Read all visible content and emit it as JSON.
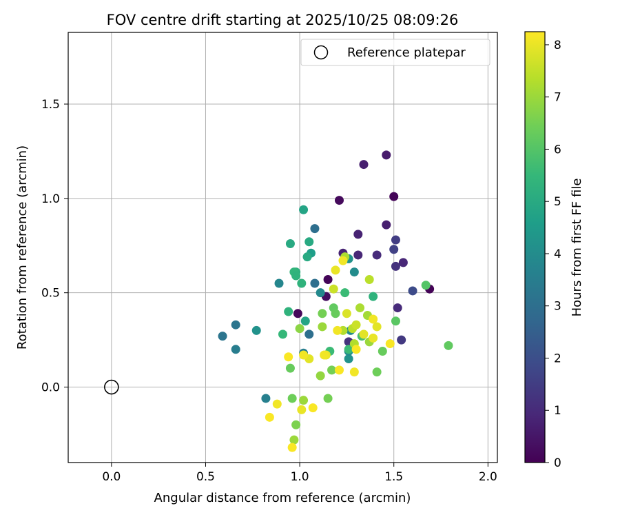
{
  "chart_data": {
    "type": "scatter",
    "title": "FOV centre drift starting at 2025/10/25 08:09:26",
    "xlabel": "Angular distance from reference (arcmin)",
    "ylabel": "Rotation from reference (arcmin)",
    "xlim": [
      -0.23,
      2.05
    ],
    "ylim": [
      -0.4,
      1.88
    ],
    "xticks": [
      0.0,
      0.5,
      1.0,
      1.5,
      2.0
    ],
    "xtick_labels": [
      "0.0",
      "0.5",
      "1.0",
      "1.5",
      "2.0"
    ],
    "yticks": [
      0.0,
      0.5,
      1.0,
      1.5
    ],
    "ytick_labels": [
      "0.0",
      "0.5",
      "1.0",
      "1.5"
    ],
    "grid": true,
    "legend": {
      "position": "top-right",
      "entries": [
        "Reference platepar"
      ]
    },
    "reference_point": {
      "x": 0.0,
      "y": 0.0,
      "label": "Reference platepar"
    },
    "colorbar": {
      "label": "Hours from first FF file",
      "range": [
        0,
        8.25
      ],
      "ticks": [
        0,
        1,
        2,
        3,
        4,
        5,
        6,
        7,
        8
      ],
      "tick_labels": [
        "0",
        "1",
        "2",
        "3",
        "4",
        "5",
        "6",
        "7",
        "8"
      ],
      "colormap": [
        "#440154",
        "#482878",
        "#3e4989",
        "#31688e",
        "#26828e",
        "#1f9e89",
        "#35b779",
        "#6ece58",
        "#b5de2b",
        "#fde725"
      ]
    },
    "points": [
      {
        "x": 1.69,
        "y": 0.52,
        "h": 0.05
      },
      {
        "x": 1.5,
        "y": 1.01,
        "h": 0.1
      },
      {
        "x": 1.21,
        "y": 0.99,
        "h": 0.2
      },
      {
        "x": 0.99,
        "y": 0.39,
        "h": 0.15
      },
      {
        "x": 1.15,
        "y": 0.57,
        "h": 0.1
      },
      {
        "x": 1.14,
        "y": 0.48,
        "h": 0.3
      },
      {
        "x": 1.46,
        "y": 1.23,
        "h": 0.6
      },
      {
        "x": 1.34,
        "y": 1.18,
        "h": 0.7
      },
      {
        "x": 1.46,
        "y": 0.86,
        "h": 0.7
      },
      {
        "x": 1.31,
        "y": 0.81,
        "h": 0.8
      },
      {
        "x": 1.23,
        "y": 0.71,
        "h": 0.8
      },
      {
        "x": 1.31,
        "y": 0.7,
        "h": 0.9
      },
      {
        "x": 1.55,
        "y": 0.66,
        "h": 0.9
      },
      {
        "x": 1.41,
        "y": 0.7,
        "h": 1.0
      },
      {
        "x": 1.52,
        "y": 0.42,
        "h": 1.0
      },
      {
        "x": 1.51,
        "y": 0.64,
        "h": 1.2
      },
      {
        "x": 1.51,
        "y": 0.78,
        "h": 1.5
      },
      {
        "x": 1.5,
        "y": 0.73,
        "h": 1.6
      },
      {
        "x": 1.54,
        "y": 0.25,
        "h": 1.4
      },
      {
        "x": 1.26,
        "y": 0.24,
        "h": 1.2
      },
      {
        "x": 1.6,
        "y": 0.51,
        "h": 1.9
      },
      {
        "x": 1.08,
        "y": 0.84,
        "h": 3.0
      },
      {
        "x": 1.08,
        "y": 0.55,
        "h": 3.0
      },
      {
        "x": 1.05,
        "y": 0.28,
        "h": 3.0
      },
      {
        "x": 0.59,
        "y": 0.27,
        "h": 3.2
      },
      {
        "x": 0.66,
        "y": 0.33,
        "h": 3.2
      },
      {
        "x": 0.66,
        "y": 0.2,
        "h": 3.5
      },
      {
        "x": 0.82,
        "y": -0.06,
        "h": 3.6
      },
      {
        "x": 0.89,
        "y": 0.55,
        "h": 3.8
      },
      {
        "x": 0.77,
        "y": 0.3,
        "h": 4.2
      },
      {
        "x": 1.02,
        "y": 0.18,
        "h": 3.5
      },
      {
        "x": 1.11,
        "y": 0.5,
        "h": 3.9
      },
      {
        "x": 1.29,
        "y": 0.61,
        "h": 4.0
      },
      {
        "x": 1.26,
        "y": 0.68,
        "h": 4.2
      },
      {
        "x": 1.27,
        "y": 0.3,
        "h": 4.0
      },
      {
        "x": 1.26,
        "y": 0.15,
        "h": 4.2
      },
      {
        "x": 1.26,
        "y": 0.19,
        "h": 4.0
      },
      {
        "x": 1.02,
        "y": 0.94,
        "h": 4.8
      },
      {
        "x": 1.06,
        "y": 0.71,
        "h": 4.6
      },
      {
        "x": 1.05,
        "y": 0.77,
        "h": 5.0
      },
      {
        "x": 1.04,
        "y": 0.69,
        "h": 5.0
      },
      {
        "x": 1.03,
        "y": 0.35,
        "h": 4.8
      },
      {
        "x": 0.95,
        "y": 0.76,
        "h": 5.0
      },
      {
        "x": 0.98,
        "y": 0.61,
        "h": 5.2
      },
      {
        "x": 0.97,
        "y": 0.61,
        "h": 5.4
      },
      {
        "x": 0.98,
        "y": 0.59,
        "h": 5.3
      },
      {
        "x": 1.01,
        "y": 0.55,
        "h": 5.3
      },
      {
        "x": 0.94,
        "y": 0.4,
        "h": 5.3
      },
      {
        "x": 0.91,
        "y": 0.28,
        "h": 5.5
      },
      {
        "x": 1.39,
        "y": 0.48,
        "h": 5.3
      },
      {
        "x": 1.24,
        "y": 0.5,
        "h": 5.6
      },
      {
        "x": 1.33,
        "y": 0.27,
        "h": 5.8
      },
      {
        "x": 1.26,
        "y": 0.2,
        "h": 5.6
      },
      {
        "x": 1.16,
        "y": 0.19,
        "h": 5.6
      },
      {
        "x": 1.67,
        "y": 0.54,
        "h": 6.0
      },
      {
        "x": 1.79,
        "y": 0.22,
        "h": 6.2
      },
      {
        "x": 1.51,
        "y": 0.35,
        "h": 6.1
      },
      {
        "x": 1.44,
        "y": 0.19,
        "h": 6.3
      },
      {
        "x": 1.41,
        "y": 0.08,
        "h": 6.4
      },
      {
        "x": 1.18,
        "y": 0.42,
        "h": 6.2
      },
      {
        "x": 1.19,
        "y": 0.39,
        "h": 6.3
      },
      {
        "x": 1.12,
        "y": 0.39,
        "h": 6.5
      },
      {
        "x": 1.17,
        "y": 0.09,
        "h": 6.5
      },
      {
        "x": 0.95,
        "y": 0.1,
        "h": 6.3
      },
      {
        "x": 0.96,
        "y": -0.06,
        "h": 6.4
      },
      {
        "x": 1.15,
        "y": -0.06,
        "h": 6.5
      },
      {
        "x": 0.98,
        "y": -0.2,
        "h": 6.6
      },
      {
        "x": 0.97,
        "y": -0.28,
        "h": 7.0
      },
      {
        "x": 1.0,
        "y": 0.31,
        "h": 6.8
      },
      {
        "x": 1.11,
        "y": 0.06,
        "h": 6.9
      },
      {
        "x": 1.12,
        "y": 0.32,
        "h": 7.0
      },
      {
        "x": 1.02,
        "y": -0.07,
        "h": 7.0
      },
      {
        "x": 1.24,
        "y": 0.69,
        "h": 7.2
      },
      {
        "x": 1.23,
        "y": 0.3,
        "h": 7.3
      },
      {
        "x": 1.28,
        "y": 0.31,
        "h": 7.4
      },
      {
        "x": 1.29,
        "y": 0.23,
        "h": 7.3
      },
      {
        "x": 1.32,
        "y": 0.42,
        "h": 7.2
      },
      {
        "x": 1.36,
        "y": 0.38,
        "h": 7.1
      },
      {
        "x": 1.37,
        "y": 0.24,
        "h": 7.0
      },
      {
        "x": 1.37,
        "y": 0.57,
        "h": 7.4
      },
      {
        "x": 1.18,
        "y": 0.52,
        "h": 7.6
      },
      {
        "x": 1.25,
        "y": 0.39,
        "h": 7.8
      },
      {
        "x": 1.3,
        "y": 0.33,
        "h": 7.6
      },
      {
        "x": 1.34,
        "y": 0.28,
        "h": 7.9
      },
      {
        "x": 1.39,
        "y": 0.26,
        "h": 8.0
      },
      {
        "x": 1.39,
        "y": 0.36,
        "h": 8.1
      },
      {
        "x": 1.41,
        "y": 0.32,
        "h": 7.9
      },
      {
        "x": 1.48,
        "y": 0.23,
        "h": 8.2
      },
      {
        "x": 1.23,
        "y": 0.67,
        "h": 8.1
      },
      {
        "x": 1.19,
        "y": 0.62,
        "h": 8.0
      },
      {
        "x": 1.2,
        "y": 0.3,
        "h": 8.1
      },
      {
        "x": 1.3,
        "y": 0.2,
        "h": 8.2
      },
      {
        "x": 1.29,
        "y": 0.08,
        "h": 8.1
      },
      {
        "x": 1.21,
        "y": 0.09,
        "h": 8.2
      },
      {
        "x": 1.14,
        "y": 0.17,
        "h": 8.0
      },
      {
        "x": 1.13,
        "y": 0.17,
        "h": 8.1
      },
      {
        "x": 1.05,
        "y": 0.15,
        "h": 7.9
      },
      {
        "x": 1.02,
        "y": 0.17,
        "h": 8.1
      },
      {
        "x": 0.94,
        "y": 0.16,
        "h": 8.2
      },
      {
        "x": 0.88,
        "y": -0.09,
        "h": 8.1
      },
      {
        "x": 0.84,
        "y": -0.16,
        "h": 8.2
      },
      {
        "x": 1.01,
        "y": -0.12,
        "h": 8.0
      },
      {
        "x": 1.07,
        "y": -0.11,
        "h": 8.2
      },
      {
        "x": 0.96,
        "y": -0.32,
        "h": 8.2
      }
    ]
  }
}
